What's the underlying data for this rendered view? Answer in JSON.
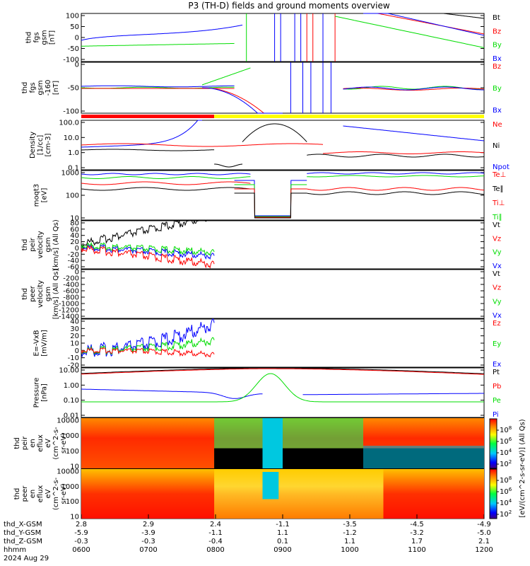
{
  "title": "P3 (TH-D) fields and ground moments overview",
  "x_ticks": [
    "0600",
    "0700",
    "0800",
    "0900",
    "1000",
    "1100",
    "1200"
  ],
  "ephemeris": [
    {
      "label": "thd_X-GSM",
      "values": [
        "2.8",
        "2.9",
        "2.4",
        "-1.1",
        "-3.5",
        "-4.5",
        "-4.9"
      ]
    },
    {
      "label": "thd_Y-GSM",
      "values": [
        "-5.9",
        "-3.9",
        "-1.1",
        "1.1",
        "-1.2",
        "-3.2",
        "-5.0"
      ]
    },
    {
      "label": "thd_Z-GSM",
      "values": [
        "-0.3",
        "-0.3",
        "-0.4",
        "0.1",
        "1.1",
        "1.7",
        "2.1"
      ]
    },
    {
      "label": "hhmm",
      "values": []
    },
    {
      "label": "2024 Aug 29",
      "values": []
    }
  ],
  "colorbar": {
    "label": "[eV/(cm^2-s-sr-eV)] (All Qs)",
    "ticks": [
      "10^8",
      "10^6",
      "10^4",
      "10^2"
    ]
  },
  "colors": {
    "black": "#000000",
    "red": "#ff0000",
    "green": "#00dd00",
    "blue": "#0000ff",
    "yellow": "#ffff00"
  },
  "chart_data": [
    {
      "id": "fgs",
      "type": "line",
      "ylabel": [
        "thd",
        "fgs",
        "gsm",
        "[nT]"
      ],
      "ylim": [
        -100,
        100
      ],
      "ticks": [
        "100",
        "50",
        "0",
        "-50",
        "-100"
      ],
      "legend": [
        {
          "name": "Bt",
          "color": "#000000"
        },
        {
          "name": "Bz",
          "color": "#ff0000"
        },
        {
          "name": "By",
          "color": "#00dd00"
        },
        {
          "name": "Bx",
          "color": "#0000ff"
        }
      ]
    },
    {
      "id": "fgs_zoom",
      "type": "line",
      "ylabel": [
        "thd",
        "fgs",
        "gsm",
        "-160",
        "[nT]"
      ],
      "ylim": [
        -130,
        40
      ],
      "ticks": [
        "0",
        "-50",
        "-100"
      ],
      "legend": [
        {
          "name": "Bz",
          "color": "#ff0000"
        },
        {
          "name": "By",
          "color": "#00dd00"
        },
        {
          "name": "Bx",
          "color": "#0000ff"
        }
      ]
    },
    {
      "id": "density",
      "type": "line",
      "scale": "log",
      "ylabel": [
        "Density",
        "[1/cc]",
        "[cm-3]"
      ],
      "ticks": [
        "100.0",
        "10.0",
        "1.0",
        "0.1"
      ],
      "legend": [
        {
          "name": "Ne",
          "color": "#ff0000"
        },
        {
          "name": "Ni",
          "color": "#000000"
        },
        {
          "name": "Npot",
          "color": "#0000ff"
        }
      ]
    },
    {
      "id": "temp",
      "type": "line",
      "scale": "log",
      "ylabel": [
        "moqt3",
        "[eV]"
      ],
      "ticks": [
        "1000",
        "100",
        "10"
      ],
      "legend": [
        {
          "name": "Te⊥",
          "color": "#ff0000"
        },
        {
          "name": "Te∥",
          "color": "#000000"
        },
        {
          "name": "Ti⊥",
          "color": "#ff0000"
        },
        {
          "name": "Ti∥",
          "color": "#00dd00"
        }
      ]
    },
    {
      "id": "peir_vel",
      "type": "line",
      "ylabel": [
        "thd",
        "peir",
        "velocity",
        "gsm",
        "[km/s] (All Qs)"
      ],
      "ylim": [
        -60,
        80
      ],
      "ticks": [
        "80",
        "60",
        "40",
        "20",
        "0",
        "-20",
        "-40",
        "-60"
      ],
      "legend": [
        {
          "name": "Vt",
          "color": "#000000"
        },
        {
          "name": "Vz",
          "color": "#ff0000"
        },
        {
          "name": "Vy",
          "color": "#00dd00"
        },
        {
          "name": "Vx",
          "color": "#0000ff"
        }
      ]
    },
    {
      "id": "peer_vel",
      "type": "line",
      "ylabel": [
        "thd",
        "peer",
        "velocity",
        "gsm",
        "[km/s] (All Qs)"
      ],
      "ylim": [
        -1500,
        0
      ],
      "ticks": [
        "0",
        "-200",
        "-400",
        "-600",
        "-800",
        "-1000",
        "-1200",
        "-1400"
      ],
      "legend": [
        {
          "name": "Vt",
          "color": "#000000"
        },
        {
          "name": "Vz",
          "color": "#ff0000"
        },
        {
          "name": "Vy",
          "color": "#00dd00"
        },
        {
          "name": "Vx",
          "color": "#0000ff"
        }
      ]
    },
    {
      "id": "efield",
      "type": "line",
      "ylabel": [
        "E=-VxB",
        "[mV/m]"
      ],
      "ylim": [
        -20,
        40
      ],
      "ticks": [
        "40",
        "30",
        "20",
        "10",
        "0",
        "-10",
        "-20"
      ],
      "legend": [
        {
          "name": "Ez",
          "color": "#ff0000"
        },
        {
          "name": "Ey",
          "color": "#00dd00"
        },
        {
          "name": "Ex",
          "color": "#0000ff"
        }
      ]
    },
    {
      "id": "pressure",
      "type": "line",
      "scale": "log",
      "ylabel": [
        "Pressure",
        "[nPa]"
      ],
      "ticks": [
        "10.00",
        "1.00",
        "0.10",
        "0.01"
      ],
      "legend": [
        {
          "name": "Pt",
          "color": "#000000"
        },
        {
          "name": "Pb",
          "color": "#ff0000"
        },
        {
          "name": "Pe",
          "color": "#00dd00"
        },
        {
          "name": "Pi",
          "color": "#0000ff"
        }
      ]
    },
    {
      "id": "peir_spec",
      "type": "heatmap",
      "scale": "log",
      "ylabel": [
        "thd",
        "peir",
        "en",
        "eflux",
        "eV",
        "(cm^2-s-",
        "sr-eV)"
      ],
      "ticks": [
        "10000",
        "1000",
        "100",
        "10"
      ]
    },
    {
      "id": "peer_spec",
      "type": "heatmap",
      "scale": "log",
      "ylabel": [
        "thd",
        "peer",
        "en",
        "eflux",
        "eV",
        "(cm^2-s-",
        "sr-eV)"
      ],
      "ticks": [
        "10000",
        "1000",
        "100",
        "10"
      ]
    }
  ]
}
